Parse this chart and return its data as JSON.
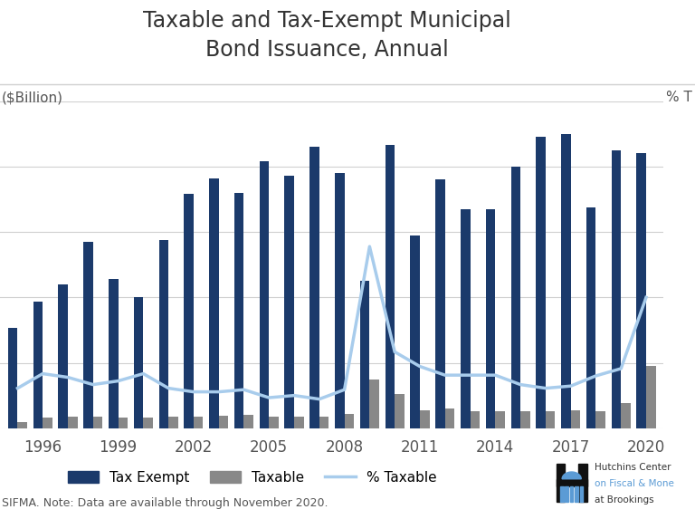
{
  "title": "Taxable and Tax-Exempt Municipal\nBond Issuance, Annual",
  "ylabel_left": "($Billion)",
  "ylabel_right": "% T",
  "source_text": "SIFMA. Note: Data are available through November 2020.",
  "years": [
    1995,
    1996,
    1997,
    1998,
    1999,
    2000,
    2001,
    2002,
    2003,
    2004,
    2005,
    2006,
    2007,
    2008,
    2009,
    2010,
    2011,
    2012,
    2013,
    2014,
    2015,
    2016,
    2017,
    2018,
    2019,
    2020
  ],
  "tax_exempt": [
    154,
    193,
    220,
    285,
    228,
    200,
    288,
    358,
    382,
    360,
    408,
    386,
    430,
    390,
    226,
    433,
    295,
    380,
    335,
    335,
    400,
    445,
    450,
    338,
    425,
    420
  ],
  "taxable": [
    9,
    16,
    17,
    18,
    16,
    16,
    17,
    18,
    19,
    20,
    18,
    18,
    18,
    22,
    75,
    52,
    27,
    30,
    26,
    26,
    26,
    26,
    28,
    26,
    38,
    95
  ],
  "pct_taxable": [
    5.5,
    7.5,
    7,
    6,
    6.5,
    7.5,
    5.5,
    5,
    5,
    5.3,
    4.2,
    4.5,
    4,
    5.3,
    25,
    10.5,
    8.5,
    7.3,
    7.3,
    7.3,
    6,
    5.5,
    5.8,
    7.2,
    8.2,
    18
  ],
  "bar_color_exempt": "#1b3a6b",
  "bar_color_taxable": "#888888",
  "line_color": "#a8ccec",
  "background_color": "#ffffff",
  "grid_color": "#d0d0d0",
  "tick_label_color": "#555555",
  "title_color": "#333333",
  "label_color": "#555555",
  "ylim_left": [
    0,
    500
  ],
  "ylim_right": [
    0,
    45
  ],
  "xtick_years": [
    1996,
    1999,
    2002,
    2005,
    2008,
    2011,
    2014,
    2017,
    2020
  ],
  "title_fontsize": 17,
  "label_fontsize": 11,
  "tick_fontsize": 12,
  "legend_fontsize": 11
}
